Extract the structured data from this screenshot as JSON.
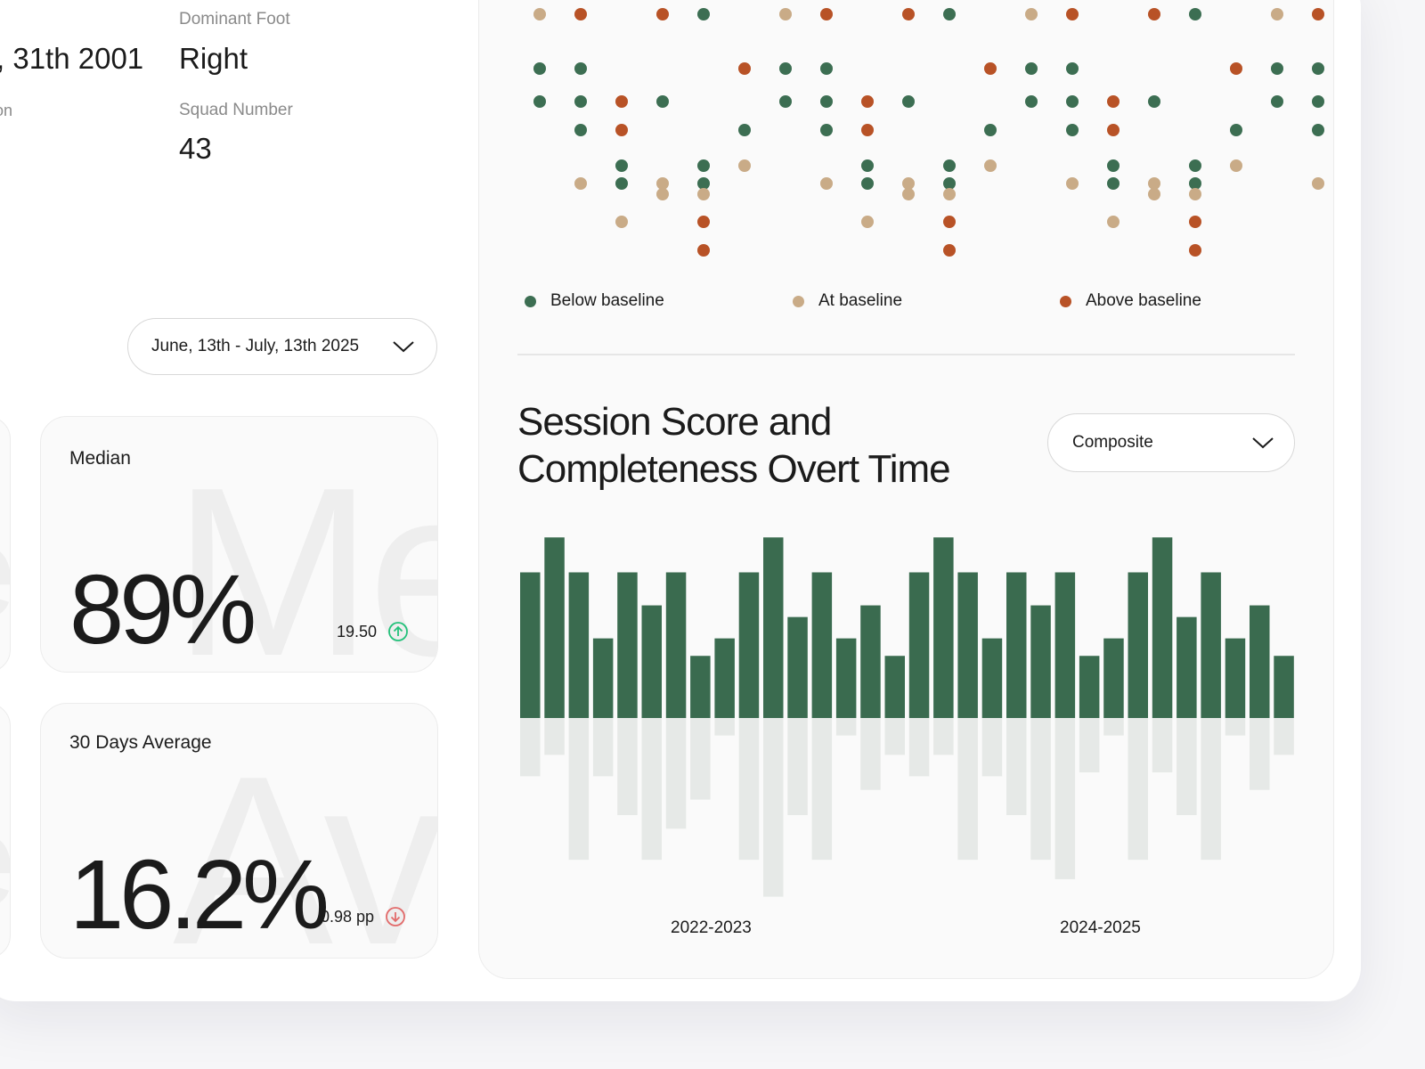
{
  "profile": {
    "birth_value": ", 31th 2001",
    "position_fragment": "on",
    "dominant_foot_label": "Dominant Foot",
    "dominant_foot_value": "Right",
    "squad_number_label": "Squad Number",
    "squad_number_value": "43"
  },
  "date_range": {
    "value": "June, 13th - July, 13th 2025"
  },
  "cards": {
    "median": {
      "title": "Median",
      "ghost": "Me",
      "value": "89%",
      "delta": "19.50",
      "trend": "up"
    },
    "avg30": {
      "title": "30 Days Average",
      "ghost": "Ave",
      "value": "16.2%",
      "delta": "0.98 pp",
      "trend": "down"
    },
    "edge_ghost": "e"
  },
  "colors": {
    "below": "#3c6e52",
    "at": "#c9ab87",
    "above": "#b85226",
    "bar_pos": "#3a6b4f",
    "bar_neg": "#e6e9e7",
    "up": "#22c17a",
    "down": "#e26a6a"
  },
  "dot_chart": {
    "legend": [
      {
        "key": "below",
        "label": "Below baseline"
      },
      {
        "key": "at",
        "label": "At baseline"
      },
      {
        "key": "above",
        "label": "Above baseline"
      }
    ],
    "columns": [
      [
        [
          "at",
          0
        ],
        [
          "below",
          2
        ],
        [
          "below",
          3
        ]
      ],
      [
        [
          "above",
          0
        ],
        [
          "below",
          2
        ],
        [
          "below",
          3
        ],
        [
          "below",
          4
        ],
        [
          "at",
          6
        ]
      ],
      [
        [
          "above",
          3
        ],
        [
          "above",
          4
        ],
        [
          "below",
          5
        ],
        [
          "below",
          6
        ],
        [
          "at",
          8
        ]
      ],
      [
        [
          "above",
          0
        ],
        [
          "below",
          3
        ],
        [
          "at",
          6
        ],
        [
          "at",
          7
        ]
      ],
      [
        [
          "below",
          0
        ],
        [
          "below",
          5
        ],
        [
          "below",
          6
        ],
        [
          "at",
          7
        ],
        [
          "above",
          8
        ],
        [
          "above",
          9
        ]
      ],
      [
        [
          "above",
          2
        ],
        [
          "below",
          4
        ],
        [
          "at",
          5
        ]
      ],
      [
        [
          "at",
          0
        ],
        [
          "below",
          2
        ],
        [
          "below",
          3
        ]
      ],
      [
        [
          "above",
          0
        ],
        [
          "below",
          2
        ],
        [
          "below",
          3
        ],
        [
          "below",
          4
        ],
        [
          "at",
          6
        ]
      ],
      [
        [
          "above",
          3
        ],
        [
          "above",
          4
        ],
        [
          "below",
          5
        ],
        [
          "below",
          6
        ],
        [
          "at",
          8
        ]
      ],
      [
        [
          "above",
          0
        ],
        [
          "below",
          3
        ],
        [
          "at",
          6
        ],
        [
          "at",
          7
        ]
      ],
      [
        [
          "below",
          0
        ],
        [
          "below",
          5
        ],
        [
          "below",
          6
        ],
        [
          "at",
          7
        ],
        [
          "above",
          8
        ],
        [
          "above",
          9
        ]
      ],
      [
        [
          "above",
          2
        ],
        [
          "below",
          4
        ],
        [
          "at",
          5
        ]
      ],
      [
        [
          "at",
          0
        ],
        [
          "below",
          2
        ],
        [
          "below",
          3
        ]
      ],
      [
        [
          "above",
          0
        ],
        [
          "below",
          2
        ],
        [
          "below",
          3
        ],
        [
          "below",
          4
        ],
        [
          "at",
          6
        ]
      ],
      [
        [
          "above",
          3
        ],
        [
          "above",
          4
        ],
        [
          "below",
          5
        ],
        [
          "below",
          6
        ],
        [
          "at",
          8
        ]
      ],
      [
        [
          "above",
          0
        ],
        [
          "below",
          3
        ],
        [
          "at",
          6
        ],
        [
          "at",
          7
        ]
      ],
      [
        [
          "below",
          0
        ],
        [
          "below",
          5
        ],
        [
          "below",
          6
        ],
        [
          "at",
          7
        ],
        [
          "above",
          8
        ],
        [
          "above",
          9
        ]
      ],
      [
        [
          "above",
          2
        ],
        [
          "below",
          4
        ],
        [
          "at",
          5
        ]
      ],
      [
        [
          "at",
          0
        ],
        [
          "below",
          2
        ],
        [
          "below",
          3
        ]
      ],
      [
        [
          "above",
          0
        ],
        [
          "below",
          2
        ],
        [
          "below",
          3
        ],
        [
          "below",
          4
        ],
        [
          "at",
          6
        ]
      ]
    ]
  },
  "bar_chart": {
    "title": "Session Score and Completeness Overt Time",
    "metric": "Composite",
    "x_labels": [
      "2022-2023",
      "2024-2025"
    ]
  },
  "chart_data": {
    "type": "bar",
    "title": "Session Score and Completeness Overt Time",
    "xlabel": "",
    "ylabel": "",
    "x_tick_labels": [
      "2022-2023",
      "2024-2025"
    ],
    "series": [
      {
        "values": [
          7.5,
          9.3,
          7.5,
          4.1,
          7.5,
          5.8,
          7.5,
          3.2,
          4.1,
          7.5,
          9.3,
          5.2,
          7.5,
          4.1,
          5.8,
          3.2,
          7.5,
          9.3,
          7.5,
          4.1,
          7.5,
          5.8,
          7.5,
          3.2,
          4.1,
          7.5,
          9.3,
          5.2,
          7.5,
          4.1,
          5.8,
          3.2
        ]
      },
      {
        "values": [
          -3.0,
          -1.9,
          -7.3,
          -3.0,
          -5.0,
          -7.3,
          -5.7,
          -4.2,
          -0.9,
          -7.3,
          -9.2,
          -5.0,
          -7.3,
          -0.9,
          -3.7,
          -1.9,
          -3.0,
          -1.9,
          -7.3,
          -3.0,
          -5.0,
          -7.3,
          -8.3,
          -2.8,
          -0.9,
          -7.3,
          -2.8,
          -5.0,
          -7.3,
          -0.9,
          -3.7,
          -1.9
        ]
      }
    ],
    "ylim": [
      -10,
      10
    ],
    "grid": false
  }
}
